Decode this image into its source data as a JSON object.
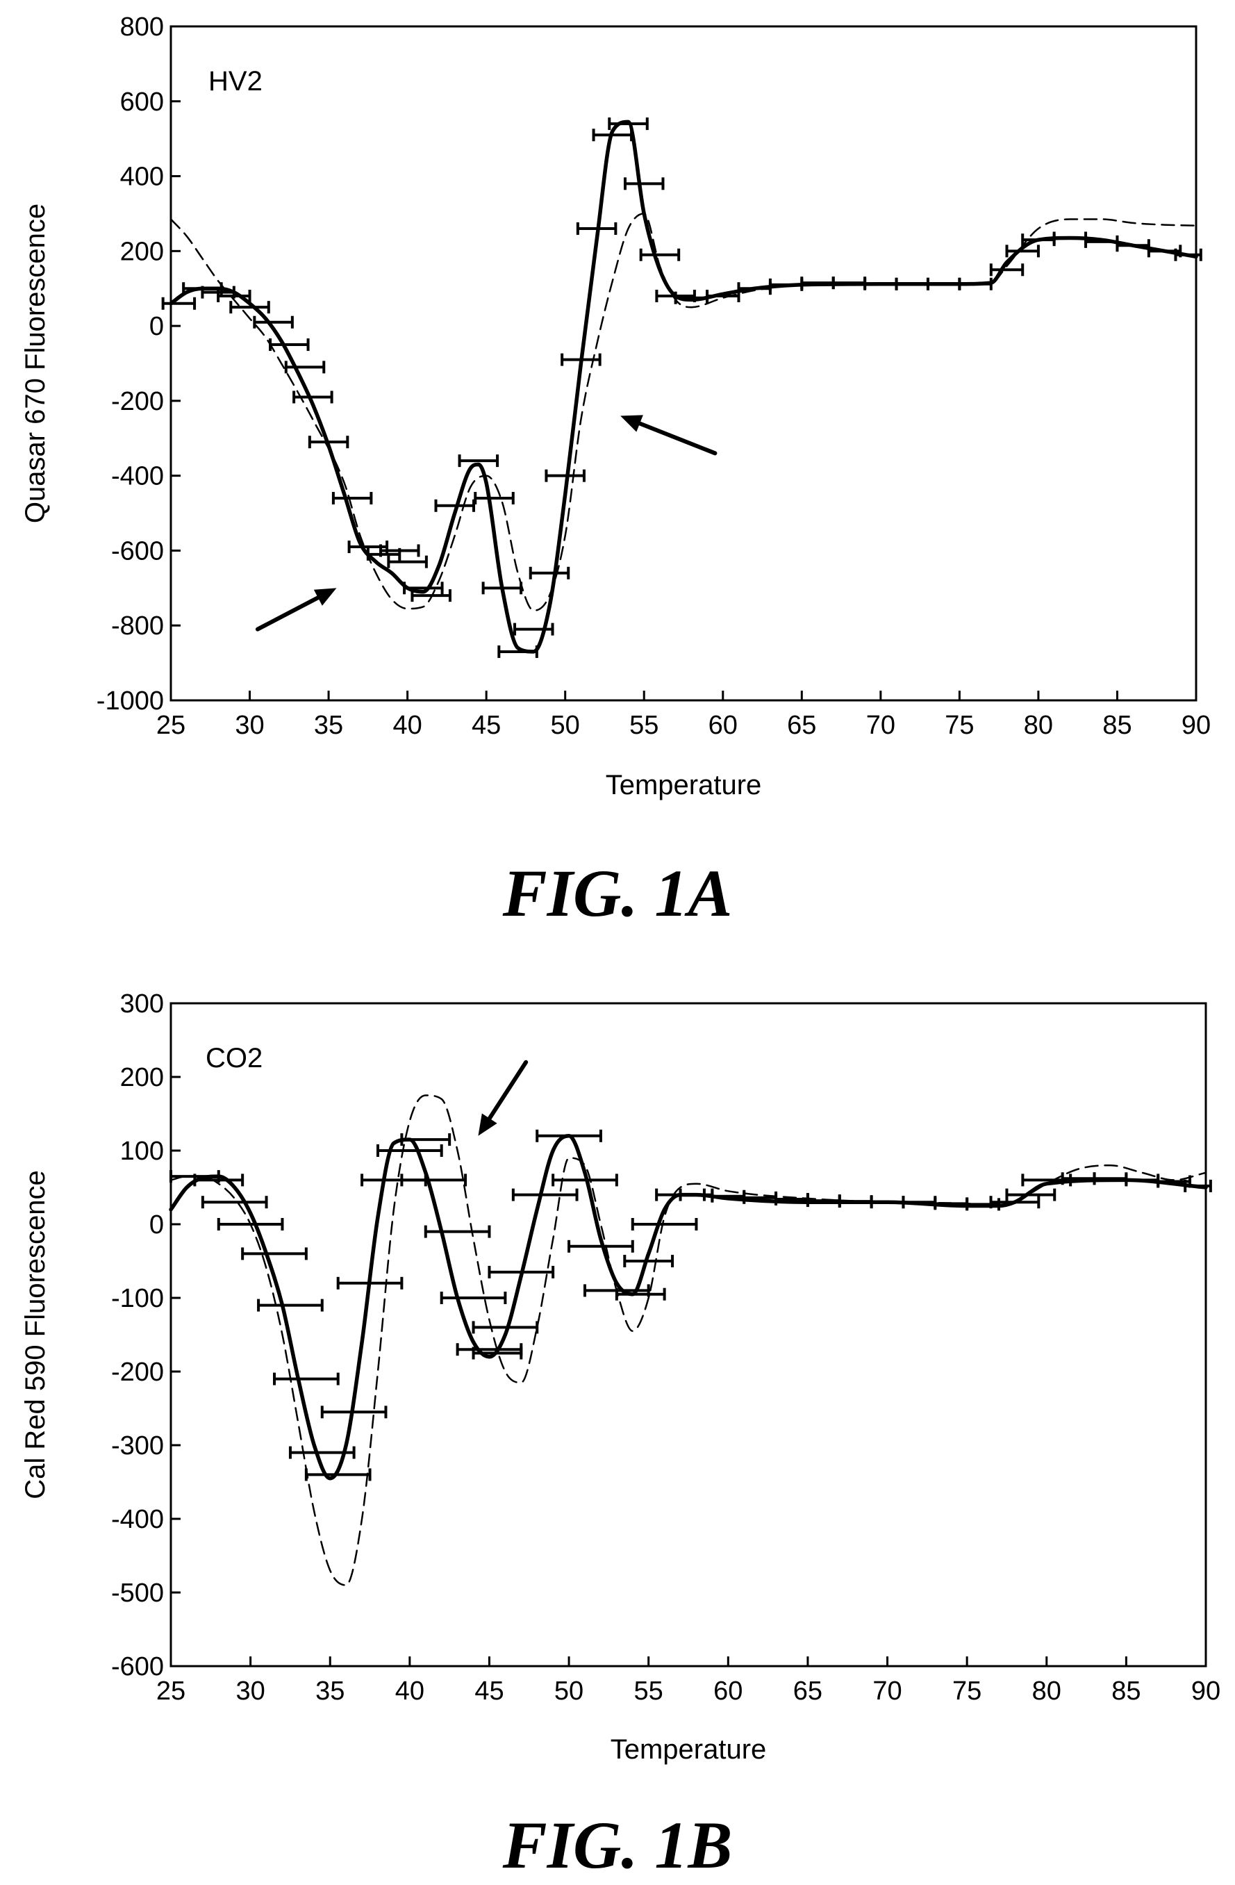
{
  "chart_data": [
    {
      "type": "line",
      "panel_label": "HV2",
      "caption": "FIG. 1A",
      "xlabel": "Temperature",
      "ylabel": "Quasar 670 Fluorescence",
      "xlim": [
        25,
        90
      ],
      "ylim": [
        -1000,
        800
      ],
      "x_ticks": [
        25,
        30,
        35,
        40,
        45,
        50,
        55,
        60,
        65,
        70,
        75,
        80,
        85,
        90
      ],
      "y_ticks": [
        -1000,
        -800,
        -600,
        -400,
        -200,
        0,
        200,
        400,
        600,
        800
      ],
      "grid": false,
      "legend": "none",
      "series": [
        {
          "style": "solid",
          "x": [
            25,
            26,
            27,
            28,
            29,
            30,
            31,
            32,
            33,
            34,
            35,
            36,
            37,
            38,
            39,
            40,
            41,
            42,
            43,
            44,
            44.5,
            45,
            46,
            47,
            48,
            49,
            50,
            51,
            52,
            53,
            54,
            55,
            56,
            57,
            58,
            60,
            62,
            65,
            70,
            75,
            77,
            78,
            80,
            82,
            84,
            86,
            88,
            90
          ],
          "y": [
            60,
            90,
            100,
            100,
            90,
            60,
            20,
            -40,
            -120,
            -210,
            -320,
            -450,
            -580,
            -630,
            -660,
            -700,
            -710,
            -640,
            -500,
            -380,
            -370,
            -420,
            -700,
            -860,
            -870,
            -750,
            -450,
            -100,
            230,
            520,
            545,
            300,
            150,
            80,
            70,
            85,
            100,
            110,
            112,
            112,
            115,
            170,
            230,
            235,
            230,
            215,
            200,
            185
          ]
        },
        {
          "style": "dashed",
          "x": [
            25,
            26,
            27,
            28,
            29,
            30,
            31,
            32,
            34,
            36,
            37,
            38,
            39,
            40,
            41,
            42,
            43,
            44,
            45,
            46,
            47,
            48,
            49,
            50,
            51,
            52,
            53,
            54,
            55,
            56,
            57,
            58,
            60,
            62,
            65,
            70,
            75,
            77,
            78,
            80,
            82,
            84,
            86,
            88,
            90
          ],
          "y": [
            285,
            240,
            180,
            120,
            70,
            20,
            -30,
            -100,
            -250,
            -420,
            -560,
            -660,
            -730,
            -755,
            -750,
            -680,
            -560,
            -430,
            -400,
            -470,
            -660,
            -760,
            -720,
            -560,
            -250,
            -50,
            120,
            260,
            300,
            160,
            70,
            50,
            75,
            95,
            110,
            113,
            113,
            115,
            160,
            260,
            285,
            285,
            275,
            270,
            268
          ]
        }
      ],
      "error_bars": [
        {
          "x": 25.5,
          "y": 60,
          "xerr": 1.0
        },
        {
          "x": 27.0,
          "y": 100,
          "xerr": 1.2
        },
        {
          "x": 28.0,
          "y": 90,
          "xerr": 1.0
        },
        {
          "x": 29.0,
          "y": 80,
          "xerr": 1.0
        },
        {
          "x": 30.0,
          "y": 50,
          "xerr": 1.2
        },
        {
          "x": 31.5,
          "y": 10,
          "xerr": 1.2
        },
        {
          "x": 32.5,
          "y": -50,
          "xerr": 1.2
        },
        {
          "x": 33.5,
          "y": -110,
          "xerr": 1.2
        },
        {
          "x": 34.0,
          "y": -190,
          "xerr": 1.2
        },
        {
          "x": 35.0,
          "y": -310,
          "xerr": 1.2
        },
        {
          "x": 36.5,
          "y": -460,
          "xerr": 1.2
        },
        {
          "x": 37.5,
          "y": -590,
          "xerr": 1.2
        },
        {
          "x": 38.5,
          "y": -610,
          "xerr": 1.0
        },
        {
          "x": 39.5,
          "y": -600,
          "xerr": 1.2
        },
        {
          "x": 40.0,
          "y": -630,
          "xerr": 1.2
        },
        {
          "x": 41.0,
          "y": -700,
          "xerr": 1.2
        },
        {
          "x": 41.5,
          "y": -720,
          "xerr": 1.2
        },
        {
          "x": 43.0,
          "y": -480,
          "xerr": 1.2
        },
        {
          "x": 44.5,
          "y": -360,
          "xerr": 1.2
        },
        {
          "x": 45.5,
          "y": -460,
          "xerr": 1.2
        },
        {
          "x": 46.0,
          "y": -700,
          "xerr": 1.2
        },
        {
          "x": 47.0,
          "y": -870,
          "xerr": 1.2
        },
        {
          "x": 48.0,
          "y": -810,
          "xerr": 1.2
        },
        {
          "x": 49.0,
          "y": -660,
          "xerr": 1.2
        },
        {
          "x": 50.0,
          "y": -400,
          "xerr": 1.2
        },
        {
          "x": 51.0,
          "y": -90,
          "xerr": 1.2
        },
        {
          "x": 52.0,
          "y": 260,
          "xerr": 1.2
        },
        {
          "x": 53.0,
          "y": 510,
          "xerr": 1.2
        },
        {
          "x": 54.0,
          "y": 540,
          "xerr": 1.2
        },
        {
          "x": 55.0,
          "y": 380,
          "xerr": 1.2
        },
        {
          "x": 56.0,
          "y": 190,
          "xerr": 1.2
        },
        {
          "x": 57.0,
          "y": 80,
          "xerr": 1.2
        },
        {
          "x": 58.0,
          "y": 75,
          "xerr": 1.0
        },
        {
          "x": 60.0,
          "y": 80,
          "xerr": 1.0
        },
        {
          "x": 62.0,
          "y": 100,
          "xerr": 1.0
        },
        {
          "x": 64.0,
          "y": 110,
          "xerr": 1.0
        },
        {
          "x": 66.0,
          "y": 115,
          "xerr": 1.0
        },
        {
          "x": 68.0,
          "y": 115,
          "xerr": 1.0
        },
        {
          "x": 70.0,
          "y": 112,
          "xerr": 1.0
        },
        {
          "x": 72.0,
          "y": 112,
          "xerr": 1.0
        },
        {
          "x": 74.0,
          "y": 112,
          "xerr": 1.0
        },
        {
          "x": 76.0,
          "y": 112,
          "xerr": 1.0
        },
        {
          "x": 78.0,
          "y": 150,
          "xerr": 1.0
        },
        {
          "x": 79.0,
          "y": 200,
          "xerr": 1.0
        },
        {
          "x": 80.0,
          "y": 230,
          "xerr": 1.0
        },
        {
          "x": 82.0,
          "y": 235,
          "xerr": 1.0
        },
        {
          "x": 84.0,
          "y": 225,
          "xerr": 1.0
        },
        {
          "x": 86.0,
          "y": 215,
          "xerr": 1.0
        },
        {
          "x": 88.0,
          "y": 200,
          "xerr": 1.0
        },
        {
          "x": 89.5,
          "y": 190,
          "xerr": 0.8
        }
      ],
      "arrows": [
        {
          "from": [
            30.5,
            -810
          ],
          "to": [
            35.5,
            -700
          ]
        },
        {
          "from": [
            59.5,
            -340
          ],
          "to": [
            53.5,
            -240
          ]
        }
      ]
    },
    {
      "type": "line",
      "panel_label": "CO2",
      "caption": "FIG. 1B",
      "xlabel": "Temperature",
      "ylabel": "Cal Red 590 Fluorescence",
      "xlim": [
        25,
        90
      ],
      "ylim": [
        -600,
        300
      ],
      "x_ticks": [
        25,
        30,
        35,
        40,
        45,
        50,
        55,
        60,
        65,
        70,
        75,
        80,
        85,
        90
      ],
      "y_ticks": [
        -600,
        -500,
        -400,
        -300,
        -200,
        -100,
        0,
        100,
        200,
        300
      ],
      "grid": false,
      "legend": "none",
      "series": [
        {
          "style": "solid",
          "x": [
            25,
            26,
            27,
            28,
            29,
            30,
            31,
            32,
            33,
            34,
            35,
            36,
            37,
            38,
            39,
            40,
            41,
            42,
            43,
            44,
            45,
            46,
            47,
            48,
            49,
            50,
            51,
            52,
            53,
            54,
            55,
            56,
            57,
            58,
            60,
            65,
            70,
            75,
            77,
            78,
            80,
            85,
            90
          ],
          "y": [
            20,
            50,
            63,
            65,
            50,
            15,
            -40,
            -110,
            -210,
            -300,
            -345,
            -300,
            -160,
            10,
            110,
            115,
            70,
            -10,
            -100,
            -160,
            -180,
            -150,
            -70,
            20,
            100,
            120,
            70,
            -20,
            -80,
            -95,
            -40,
            20,
            40,
            40,
            35,
            30,
            30,
            25,
            25,
            30,
            55,
            60,
            50
          ]
        },
        {
          "style": "dashed",
          "x": [
            25,
            26,
            27,
            28,
            29,
            30,
            31,
            32,
            33,
            34,
            35,
            36,
            37,
            38,
            39,
            40,
            41,
            42,
            43,
            44,
            45,
            46,
            47,
            48,
            49,
            50,
            51,
            52,
            53,
            54,
            55,
            56,
            57,
            58,
            60,
            65,
            70,
            75,
            77,
            78,
            80,
            82,
            84,
            86,
            88,
            90
          ],
          "y": [
            60,
            65,
            65,
            55,
            35,
            0,
            -60,
            -150,
            -270,
            -390,
            -470,
            -490,
            -400,
            -200,
            20,
            140,
            175,
            170,
            100,
            -20,
            -130,
            -200,
            -215,
            -140,
            -20,
            90,
            80,
            0,
            -90,
            -145,
            -100,
            10,
            50,
            55,
            45,
            35,
            30,
            28,
            25,
            30,
            55,
            75,
            80,
            70,
            60,
            70
          ]
        }
      ],
      "error_bars": [
        {
          "x": 26.5,
          "y": 65,
          "xerr": 1.5
        },
        {
          "x": 28.0,
          "y": 60,
          "xerr": 1.5
        },
        {
          "x": 29.0,
          "y": 30,
          "xerr": 2.0
        },
        {
          "x": 30.0,
          "y": 0,
          "xerr": 2.0
        },
        {
          "x": 31.5,
          "y": -40,
          "xerr": 2.0
        },
        {
          "x": 32.5,
          "y": -110,
          "xerr": 2.0
        },
        {
          "x": 33.5,
          "y": -210,
          "xerr": 2.0
        },
        {
          "x": 34.5,
          "y": -310,
          "xerr": 2.0
        },
        {
          "x": 35.5,
          "y": -340,
          "xerr": 2.0
        },
        {
          "x": 36.5,
          "y": -255,
          "xerr": 2.0
        },
        {
          "x": 37.5,
          "y": -80,
          "xerr": 2.0
        },
        {
          "x": 39.0,
          "y": 60,
          "xerr": 2.0
        },
        {
          "x": 40.0,
          "y": 100,
          "xerr": 2.0
        },
        {
          "x": 41.0,
          "y": 115,
          "xerr": 1.5
        },
        {
          "x": 41.5,
          "y": 60,
          "xerr": 2.0
        },
        {
          "x": 43.0,
          "y": -10,
          "xerr": 2.0
        },
        {
          "x": 44.0,
          "y": -100,
          "xerr": 2.0
        },
        {
          "x": 45.0,
          "y": -170,
          "xerr": 2.0
        },
        {
          "x": 45.5,
          "y": -175,
          "xerr": 1.5
        },
        {
          "x": 46.0,
          "y": -140,
          "xerr": 2.0
        },
        {
          "x": 47.0,
          "y": -65,
          "xerr": 2.0
        },
        {
          "x": 48.5,
          "y": 40,
          "xerr": 2.0
        },
        {
          "x": 50.0,
          "y": 120,
          "xerr": 2.0
        },
        {
          "x": 51.0,
          "y": 60,
          "xerr": 2.0
        },
        {
          "x": 52.0,
          "y": -30,
          "xerr": 2.0
        },
        {
          "x": 53.0,
          "y": -90,
          "xerr": 2.0
        },
        {
          "x": 54.5,
          "y": -95,
          "xerr": 1.5
        },
        {
          "x": 55.0,
          "y": -50,
          "xerr": 1.5
        },
        {
          "x": 56.0,
          "y": 0,
          "xerr": 2.0
        },
        {
          "x": 57.0,
          "y": 40,
          "xerr": 1.5
        },
        {
          "x": 58.0,
          "y": 40,
          "xerr": 1.0
        },
        {
          "x": 60.0,
          "y": 38,
          "xerr": 1.0
        },
        {
          "x": 62.0,
          "y": 36,
          "xerr": 1.0
        },
        {
          "x": 64.0,
          "y": 34,
          "xerr": 1.0
        },
        {
          "x": 66.0,
          "y": 32,
          "xerr": 1.0
        },
        {
          "x": 68.0,
          "y": 31,
          "xerr": 1.0
        },
        {
          "x": 70.0,
          "y": 30,
          "xerr": 1.0
        },
        {
          "x": 72.0,
          "y": 30,
          "xerr": 1.0
        },
        {
          "x": 74.0,
          "y": 28,
          "xerr": 1.0
        },
        {
          "x": 76.0,
          "y": 27,
          "xerr": 1.0
        },
        {
          "x": 78.0,
          "y": 30,
          "xerr": 1.5
        },
        {
          "x": 79.0,
          "y": 40,
          "xerr": 1.5
        },
        {
          "x": 80.0,
          "y": 60,
          "xerr": 1.5
        },
        {
          "x": 82.0,
          "y": 62,
          "xerr": 1.0
        },
        {
          "x": 84.0,
          "y": 62,
          "xerr": 1.0
        },
        {
          "x": 86.0,
          "y": 60,
          "xerr": 1.0
        },
        {
          "x": 88.0,
          "y": 58,
          "xerr": 1.0
        },
        {
          "x": 89.5,
          "y": 52,
          "xerr": 0.8
        }
      ],
      "arrows": [
        {
          "from": [
            47.3,
            220
          ],
          "to": [
            44.3,
            120
          ]
        }
      ]
    }
  ]
}
